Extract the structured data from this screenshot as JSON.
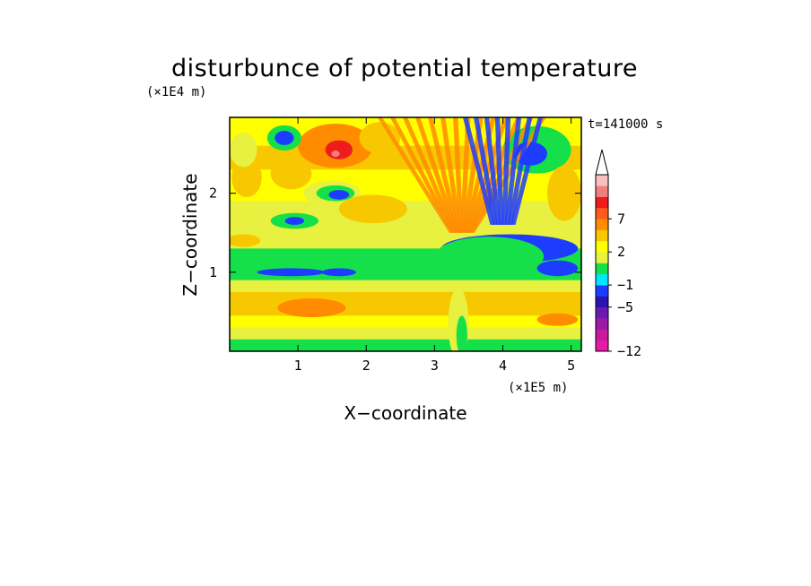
{
  "chart_data": {
    "type": "heatmap",
    "title": "disturbunce of potential temperature",
    "xlabel": "X−coordinate",
    "ylabel": "Z−coordinate",
    "x_units": "(×1E5 m)",
    "y_units": "(×1E4 m)",
    "time_label": "t=141000 s",
    "xlim": [
      0,
      5.15
    ],
    "ylim": [
      0,
      2.96
    ],
    "x_ticks": [
      1,
      2,
      3,
      4,
      5
    ],
    "y_ticks": [
      1,
      2
    ],
    "x_tick_labels": [
      "1",
      "2",
      "3",
      "4",
      "5"
    ],
    "y_tick_labels": [
      "1",
      "2"
    ],
    "colorbar": {
      "levels": [
        -12,
        -11,
        -9,
        -7,
        -5,
        -3,
        -1,
        0,
        1,
        2,
        3,
        5,
        7,
        9,
        11
      ],
      "tick_labels": [
        "−12",
        "−5",
        "−1",
        "2",
        "7"
      ],
      "colors": [
        "#e61aa6",
        "#c81a9b",
        "#9b1aa6",
        "#6b1ab0",
        "#2a14b0",
        "#1e3cff",
        "#00e6ff",
        "#15e04a",
        "#e8f040",
        "#ffff00",
        "#f7c800",
        "#ff8c00",
        "#ff5a1f",
        "#ee1c1c",
        "#f08080",
        "#f8c0c0"
      ],
      "extend": "max"
    },
    "background_rows": [
      {
        "z": [
          2.6,
          2.96
        ],
        "level": 1
      },
      {
        "z": [
          2.3,
          2.6
        ],
        "level": 2
      },
      {
        "z": [
          1.9,
          2.3
        ],
        "level": 1
      },
      {
        "z": [
          1.6,
          1.9
        ],
        "level": 0
      },
      {
        "z": [
          1.3,
          1.6
        ],
        "level": 0.5
      },
      {
        "z": [
          1.15,
          1.3
        ],
        "level": -0.5
      },
      {
        "z": [
          0.9,
          1.15
        ],
        "level": -1
      },
      {
        "z": [
          0.75,
          0.9
        ],
        "level": 0
      },
      {
        "z": [
          0.45,
          0.75
        ],
        "level": 2
      },
      {
        "z": [
          0.3,
          0.45
        ],
        "level": 1
      },
      {
        "z": [
          0.15,
          0.3
        ],
        "level": 0
      },
      {
        "z": [
          0.0,
          0.15
        ],
        "level": -1
      }
    ],
    "features": [
      {
        "kind": "ellipse",
        "x": 1.55,
        "z": 2.6,
        "rx": 0.55,
        "rz": 0.28,
        "level": 3
      },
      {
        "kind": "ellipse",
        "x": 1.6,
        "z": 2.55,
        "rx": 0.2,
        "rz": 0.12,
        "level": 7
      },
      {
        "kind": "ellipse",
        "x": 1.55,
        "z": 2.5,
        "rx": 0.06,
        "rz": 0.04,
        "level": 9
      },
      {
        "kind": "ellipse",
        "x": 0.8,
        "z": 2.7,
        "rx": 0.25,
        "rz": 0.16,
        "level": -1
      },
      {
        "kind": "ellipse",
        "x": 0.8,
        "z": 2.7,
        "rx": 0.14,
        "rz": 0.09,
        "level": -5
      },
      {
        "kind": "ellipse",
        "x": 1.5,
        "z": 2.0,
        "rx": 0.42,
        "rz": 0.16,
        "level": 0
      },
      {
        "kind": "ellipse",
        "x": 1.55,
        "z": 2.0,
        "rx": 0.28,
        "rz": 0.1,
        "level": -1
      },
      {
        "kind": "ellipse",
        "x": 1.6,
        "z": 1.98,
        "rx": 0.15,
        "rz": 0.06,
        "level": -5
      },
      {
        "kind": "ellipse",
        "x": 0.95,
        "z": 1.65,
        "rx": 0.35,
        "rz": 0.1,
        "level": -1
      },
      {
        "kind": "ellipse",
        "x": 0.95,
        "z": 1.65,
        "rx": 0.14,
        "rz": 0.05,
        "level": -5
      },
      {
        "kind": "ellipse",
        "x": 0.25,
        "z": 2.2,
        "rx": 0.22,
        "rz": 0.25,
        "level": 2
      },
      {
        "kind": "ellipse",
        "x": 0.9,
        "z": 2.25,
        "rx": 0.3,
        "rz": 0.2,
        "level": 2
      },
      {
        "kind": "ellipse",
        "x": 2.1,
        "z": 1.8,
        "rx": 0.5,
        "rz": 0.18,
        "level": 2
      },
      {
        "kind": "ellipse",
        "x": 0.2,
        "z": 2.55,
        "rx": 0.2,
        "rz": 0.22,
        "level": 0
      },
      {
        "kind": "ellipse",
        "x": 2.2,
        "z": 2.7,
        "rx": 0.3,
        "rz": 0.2,
        "level": 2
      },
      {
        "kind": "ellipse",
        "x": 4.5,
        "z": 2.55,
        "rx": 0.5,
        "rz": 0.3,
        "level": -1
      },
      {
        "kind": "ellipse",
        "x": 4.4,
        "z": 2.5,
        "rx": 0.25,
        "rz": 0.15,
        "level": -5
      },
      {
        "kind": "ellipse",
        "x": 4.9,
        "z": 2.0,
        "rx": 0.25,
        "rz": 0.35,
        "level": 2
      },
      {
        "kind": "ellipse",
        "x": 4.1,
        "z": 1.3,
        "rx": 1.0,
        "rz": 0.18,
        "level": -5
      },
      {
        "kind": "ellipse",
        "x": 3.8,
        "z": 1.2,
        "rx": 0.8,
        "rz": 0.25,
        "level": -1
      },
      {
        "kind": "ellipse",
        "x": 4.8,
        "z": 1.05,
        "rx": 0.3,
        "rz": 0.1,
        "level": -5
      },
      {
        "kind": "ellipse",
        "x": 0.9,
        "z": 1.0,
        "rx": 0.5,
        "rz": 0.05,
        "level": -5
      },
      {
        "kind": "ellipse",
        "x": 1.6,
        "z": 1.0,
        "rx": 0.25,
        "rz": 0.05,
        "level": -5
      },
      {
        "kind": "ellipse",
        "x": 1.2,
        "z": 0.55,
        "rx": 0.5,
        "rz": 0.12,
        "level": 3
      },
      {
        "kind": "ellipse",
        "x": 4.8,
        "z": 0.4,
        "rx": 0.3,
        "rz": 0.08,
        "level": 3
      },
      {
        "kind": "ellipse",
        "x": 3.35,
        "z": 0.35,
        "rx": 0.15,
        "rz": 0.45,
        "level": 0
      },
      {
        "kind": "ellipse",
        "x": 3.4,
        "z": 0.2,
        "rx": 0.08,
        "rz": 0.25,
        "level": -1
      },
      {
        "kind": "ellipse",
        "x": 0.2,
        "z": 1.4,
        "rx": 0.25,
        "rz": 0.08,
        "level": 2
      }
    ],
    "stripes": [
      {
        "x_center": 3.4,
        "z_low": 1.5,
        "z_high": 2.96,
        "count": 14,
        "spread": 1.2,
        "level": 3
      },
      {
        "x_center": 4.0,
        "z_low": 1.6,
        "z_high": 2.96,
        "count": 8,
        "spread": 0.55,
        "level": -5
      }
    ]
  }
}
